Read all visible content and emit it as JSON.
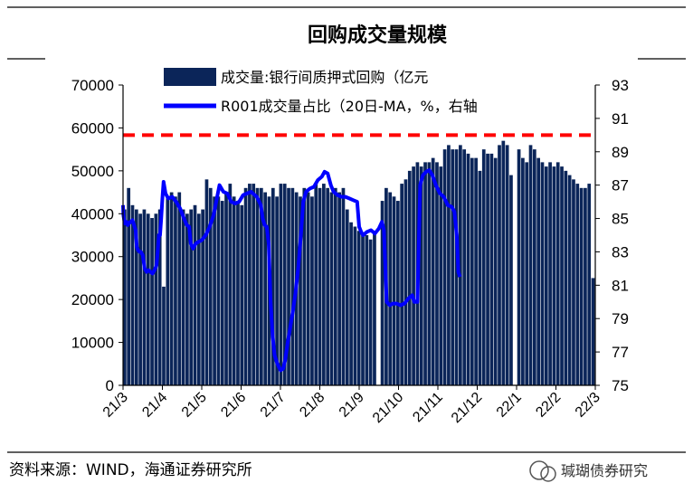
{
  "title": "回购成交量规模",
  "source": "资料来源：WIND，海通证券研究所",
  "watermark": "瑊瑚债券研究",
  "colors": {
    "bar": "#0b2559",
    "line": "#0000ff",
    "ref": "#ff0000",
    "axis": "#000000"
  },
  "chart_data": {
    "type": "bar+line",
    "title": "回购成交量规模",
    "x_categories": [
      "21/3",
      "21/4",
      "21/5",
      "21/6",
      "21/7",
      "21/8",
      "21/9",
      "21/10",
      "21/11",
      "21/12",
      "22/1",
      "22/2",
      "22/3"
    ],
    "y_left": {
      "min": 0,
      "max": 70000,
      "ticks": [
        0,
        10000,
        20000,
        30000,
        40000,
        50000,
        60000,
        70000
      ]
    },
    "y_right": {
      "min": 75,
      "max": 93,
      "ticks": [
        75,
        77,
        79,
        81,
        83,
        85,
        87,
        89,
        91,
        93
      ]
    },
    "reference_line": {
      "axis": "right",
      "value": 90,
      "style": "dashed",
      "color": "#ff0000"
    },
    "series": [
      {
        "name": "成交量:银行间质押式回购（亿元",
        "kind": "bar",
        "axis": "left",
        "points": [
          [
            "21/3",
            41000
          ],
          [
            "21/3.1",
            46000
          ],
          [
            "21/3.2",
            42000
          ],
          [
            "21/3.3",
            41000
          ],
          [
            "21/3.4",
            40000
          ],
          [
            "21/3.5",
            41000
          ],
          [
            "21/3.6",
            40000
          ],
          [
            "21/3.7",
            39000
          ],
          [
            "21/3.8",
            40000
          ],
          [
            "21/3.9",
            41000
          ],
          [
            "21/4",
            23000
          ],
          [
            "21/4.1",
            44000
          ],
          [
            "21/4.2",
            45000
          ],
          [
            "21/4.3",
            44000
          ],
          [
            "21/4.4",
            45000
          ],
          [
            "21/4.5",
            41000
          ],
          [
            "21/4.6",
            40000
          ],
          [
            "21/4.7",
            41000
          ],
          [
            "21/4.8",
            42000
          ],
          [
            "21/4.9",
            40000
          ],
          [
            "21/5",
            41000
          ],
          [
            "21/5.1",
            48000
          ],
          [
            "21/5.2",
            46000
          ],
          [
            "21/5.3",
            44000
          ],
          [
            "21/5.4",
            44000
          ],
          [
            "21/5.5",
            43000
          ],
          [
            "21/5.6",
            45000
          ],
          [
            "21/5.7",
            47000
          ],
          [
            "21/5.8",
            44000
          ],
          [
            "21/5.9",
            43000
          ],
          [
            "21/6",
            42000
          ],
          [
            "21/6.1",
            46000
          ],
          [
            "21/6.2",
            47000
          ],
          [
            "21/6.3",
            47000
          ],
          [
            "21/6.4",
            46000
          ],
          [
            "21/6.5",
            46000
          ],
          [
            "21/6.6",
            45000
          ],
          [
            "21/6.7",
            44000
          ],
          [
            "21/6.8",
            46000
          ],
          [
            "21/6.9",
            44000
          ],
          [
            "21/7",
            47000
          ],
          [
            "21/7.1",
            47000
          ],
          [
            "21/7.2",
            46000
          ],
          [
            "21/7.3",
            46000
          ],
          [
            "21/7.4",
            45000
          ],
          [
            "21/7.5",
            44000
          ],
          [
            "21/7.6",
            46000
          ],
          [
            "21/7.7",
            45000
          ],
          [
            "21/7.8",
            44000
          ],
          [
            "21/7.9",
            47000
          ],
          [
            "21/8",
            46000
          ],
          [
            "21/8.1",
            47000
          ],
          [
            "21/8.2",
            46000
          ],
          [
            "21/8.3",
            45000
          ],
          [
            "21/8.4",
            46000
          ],
          [
            "21/8.5",
            45000
          ],
          [
            "21/8.6",
            46000
          ],
          [
            "21/8.7",
            41000
          ],
          [
            "21/8.8",
            38000
          ],
          [
            "21/8.9",
            37000
          ],
          [
            "21/9",
            36000
          ],
          [
            "21/9.1",
            35000
          ],
          [
            "21/9.2",
            35000
          ],
          [
            "21/9.3",
            34000
          ],
          [
            "21/9.4",
            36000
          ],
          [
            "21/9.5",
            0
          ],
          [
            "21/9.6",
            43000
          ],
          [
            "21/9.7",
            46000
          ],
          [
            "21/9.8",
            45000
          ],
          [
            "21/9.9",
            44000
          ],
          [
            "21/10",
            43000
          ],
          [
            "21/10.1",
            47000
          ],
          [
            "21/10.2",
            48000
          ],
          [
            "21/10.3",
            50000
          ],
          [
            "21/10.4",
            51000
          ],
          [
            "21/10.5",
            52000
          ],
          [
            "21/10.6",
            51000
          ],
          [
            "21/10.7",
            52000
          ],
          [
            "21/10.8",
            52000
          ],
          [
            "21/10.9",
            53000
          ],
          [
            "21/11",
            52000
          ],
          [
            "21/11.1",
            51000
          ],
          [
            "21/11.2",
            55000
          ],
          [
            "21/11.3",
            56000
          ],
          [
            "21/11.4",
            55000
          ],
          [
            "21/11.5",
            55000
          ],
          [
            "21/11.6",
            56000
          ],
          [
            "21/11.7",
            55000
          ],
          [
            "21/11.8",
            54000
          ],
          [
            "21/11.9",
            53000
          ],
          [
            "21/12",
            53000
          ],
          [
            "21/12.1",
            50000
          ],
          [
            "21/12.2",
            55000
          ],
          [
            "21/12.3",
            54000
          ],
          [
            "21/12.4",
            54000
          ],
          [
            "21/12.5",
            53000
          ],
          [
            "21/12.6",
            56000
          ],
          [
            "21/12.7",
            57000
          ],
          [
            "21/12.8",
            56000
          ],
          [
            "21/12.9",
            49000
          ],
          [
            "22/1",
            0
          ],
          [
            "22/1.1",
            55000
          ],
          [
            "22/1.2",
            53000
          ],
          [
            "22/1.3",
            52000
          ],
          [
            "22/1.4",
            56000
          ],
          [
            "22/1.5",
            55000
          ],
          [
            "22/1.6",
            53000
          ],
          [
            "22/1.7",
            52000
          ],
          [
            "22/1.8",
            51000
          ],
          [
            "22/1.9",
            52000
          ],
          [
            "22/2",
            51000
          ],
          [
            "22/2.1",
            52000
          ],
          [
            "22/2.2",
            51000
          ],
          [
            "22/2.3",
            50000
          ],
          [
            "22/2.4",
            49000
          ],
          [
            "22/2.5",
            48000
          ],
          [
            "22/2.6",
            47000
          ],
          [
            "22/2.7",
            46000
          ],
          [
            "22/2.8",
            46000
          ],
          [
            "22/2.9",
            47000
          ],
          [
            "22/3",
            25000
          ]
        ]
      },
      {
        "name": "R001成交量占比（20日-MA，%，右轴",
        "kind": "line",
        "axis": "right",
        "points": [
          [
            0.0,
            85.8
          ],
          [
            0.01,
            85.2
          ],
          [
            0.03,
            84.9
          ],
          [
            0.05,
            84.7
          ],
          [
            0.07,
            84.8
          ],
          [
            0.09,
            84.8
          ],
          [
            0.12,
            84.6
          ],
          [
            0.15,
            84.7
          ],
          [
            0.18,
            84.8
          ],
          [
            0.2,
            84.8
          ],
          [
            0.24,
            84.9
          ],
          [
            0.28,
            84.6
          ],
          [
            0.32,
            84.3
          ],
          [
            0.35,
            83.3
          ],
          [
            0.38,
            83.1
          ],
          [
            0.42,
            83.0
          ],
          [
            0.45,
            83.0
          ],
          [
            0.5,
            82.8
          ],
          [
            0.55,
            82.0
          ],
          [
            0.6,
            81.8
          ],
          [
            0.65,
            81.9
          ],
          [
            0.7,
            81.8
          ],
          [
            0.75,
            81.7
          ],
          [
            0.8,
            81.9
          ],
          [
            0.85,
            82.2
          ],
          [
            0.88,
            83.0
          ],
          [
            0.91,
            84.0
          ],
          [
            0.94,
            84.0
          ],
          [
            0.97,
            85.0
          ],
          [
            1.0,
            86.2
          ],
          [
            1.03,
            87.2
          ],
          [
            1.08,
            86.5
          ],
          [
            1.15,
            86.2
          ],
          [
            1.25,
            86.3
          ],
          [
            1.35,
            86.0
          ],
          [
            1.45,
            85.6
          ],
          [
            1.55,
            85.0
          ],
          [
            1.62,
            84.6
          ],
          [
            1.68,
            84.5
          ],
          [
            1.72,
            83.5
          ],
          [
            1.78,
            83.2
          ],
          [
            1.85,
            83.5
          ],
          [
            1.92,
            83.6
          ],
          [
            2.0,
            83.7
          ],
          [
            2.1,
            84.0
          ],
          [
            2.2,
            84.5
          ],
          [
            2.3,
            85.2
          ],
          [
            2.4,
            86.4
          ],
          [
            2.45,
            87.0
          ],
          [
            2.55,
            86.6
          ],
          [
            2.65,
            86.5
          ],
          [
            2.75,
            86.0
          ],
          [
            2.85,
            85.9
          ],
          [
            2.95,
            86.0
          ],
          [
            3.05,
            86.4
          ],
          [
            3.15,
            86.5
          ],
          [
            3.25,
            86.6
          ],
          [
            3.3,
            86.5
          ],
          [
            3.4,
            86.3
          ],
          [
            3.5,
            85.8
          ],
          [
            3.55,
            85.0
          ],
          [
            3.6,
            84.6
          ],
          [
            3.65,
            84.5
          ],
          [
            3.7,
            83.5
          ],
          [
            3.75,
            80.0
          ],
          [
            3.8,
            78.0
          ],
          [
            3.85,
            76.8
          ],
          [
            3.92,
            76.3
          ],
          [
            4.0,
            75.9
          ],
          [
            4.07,
            76.0
          ],
          [
            4.12,
            76.5
          ],
          [
            4.18,
            77.5
          ],
          [
            4.25,
            78.5
          ],
          [
            4.32,
            79.5
          ],
          [
            4.38,
            80.5
          ],
          [
            4.45,
            82.0
          ],
          [
            4.52,
            84.0
          ],
          [
            4.58,
            86.0
          ],
          [
            4.65,
            86.6
          ],
          [
            4.75,
            86.8
          ],
          [
            4.85,
            86.9
          ],
          [
            4.95,
            87.3
          ],
          [
            5.05,
            87.5
          ],
          [
            5.12,
            87.8
          ],
          [
            5.2,
            87.7
          ],
          [
            5.28,
            87.0
          ],
          [
            5.35,
            86.6
          ],
          [
            5.45,
            86.4
          ],
          [
            5.55,
            86.3
          ],
          [
            5.65,
            86.3
          ],
          [
            5.75,
            86.2
          ],
          [
            5.85,
            86.1
          ],
          [
            5.95,
            86.0
          ],
          [
            6.0,
            84.5
          ],
          [
            6.05,
            84.2
          ],
          [
            6.1,
            84.0
          ],
          [
            6.2,
            84.2
          ],
          [
            6.3,
            84.3
          ],
          [
            6.4,
            84.1
          ],
          [
            6.5,
            84.4
          ],
          [
            6.58,
            84.8
          ],
          [
            6.63,
            84.3
          ],
          [
            6.7,
            80.0
          ],
          [
            6.78,
            79.8
          ],
          [
            6.85,
            79.9
          ],
          [
            6.95,
            79.9
          ],
          [
            7.05,
            79.8
          ],
          [
            7.15,
            79.9
          ],
          [
            7.25,
            80.2
          ],
          [
            7.35,
            80.4
          ],
          [
            7.4,
            80.0
          ],
          [
            7.48,
            80.0
          ],
          [
            7.55,
            87.0
          ],
          [
            7.62,
            87.6
          ],
          [
            7.7,
            87.8
          ],
          [
            7.78,
            87.9
          ],
          [
            7.86,
            87.6
          ],
          [
            7.95,
            87.0
          ],
          [
            8.05,
            86.5
          ],
          [
            8.15,
            86.3
          ],
          [
            8.25,
            85.8
          ],
          [
            8.35,
            85.7
          ],
          [
            8.42,
            85.4
          ],
          [
            8.48,
            84.0
          ],
          [
            8.52,
            81.8
          ],
          [
            8.56,
            81.5
          ]
        ]
      }
    ],
    "legend": [
      "成交量:银行间质押式回购（亿元",
      "R001成交量占比（20日-MA，%，右轴"
    ]
  }
}
